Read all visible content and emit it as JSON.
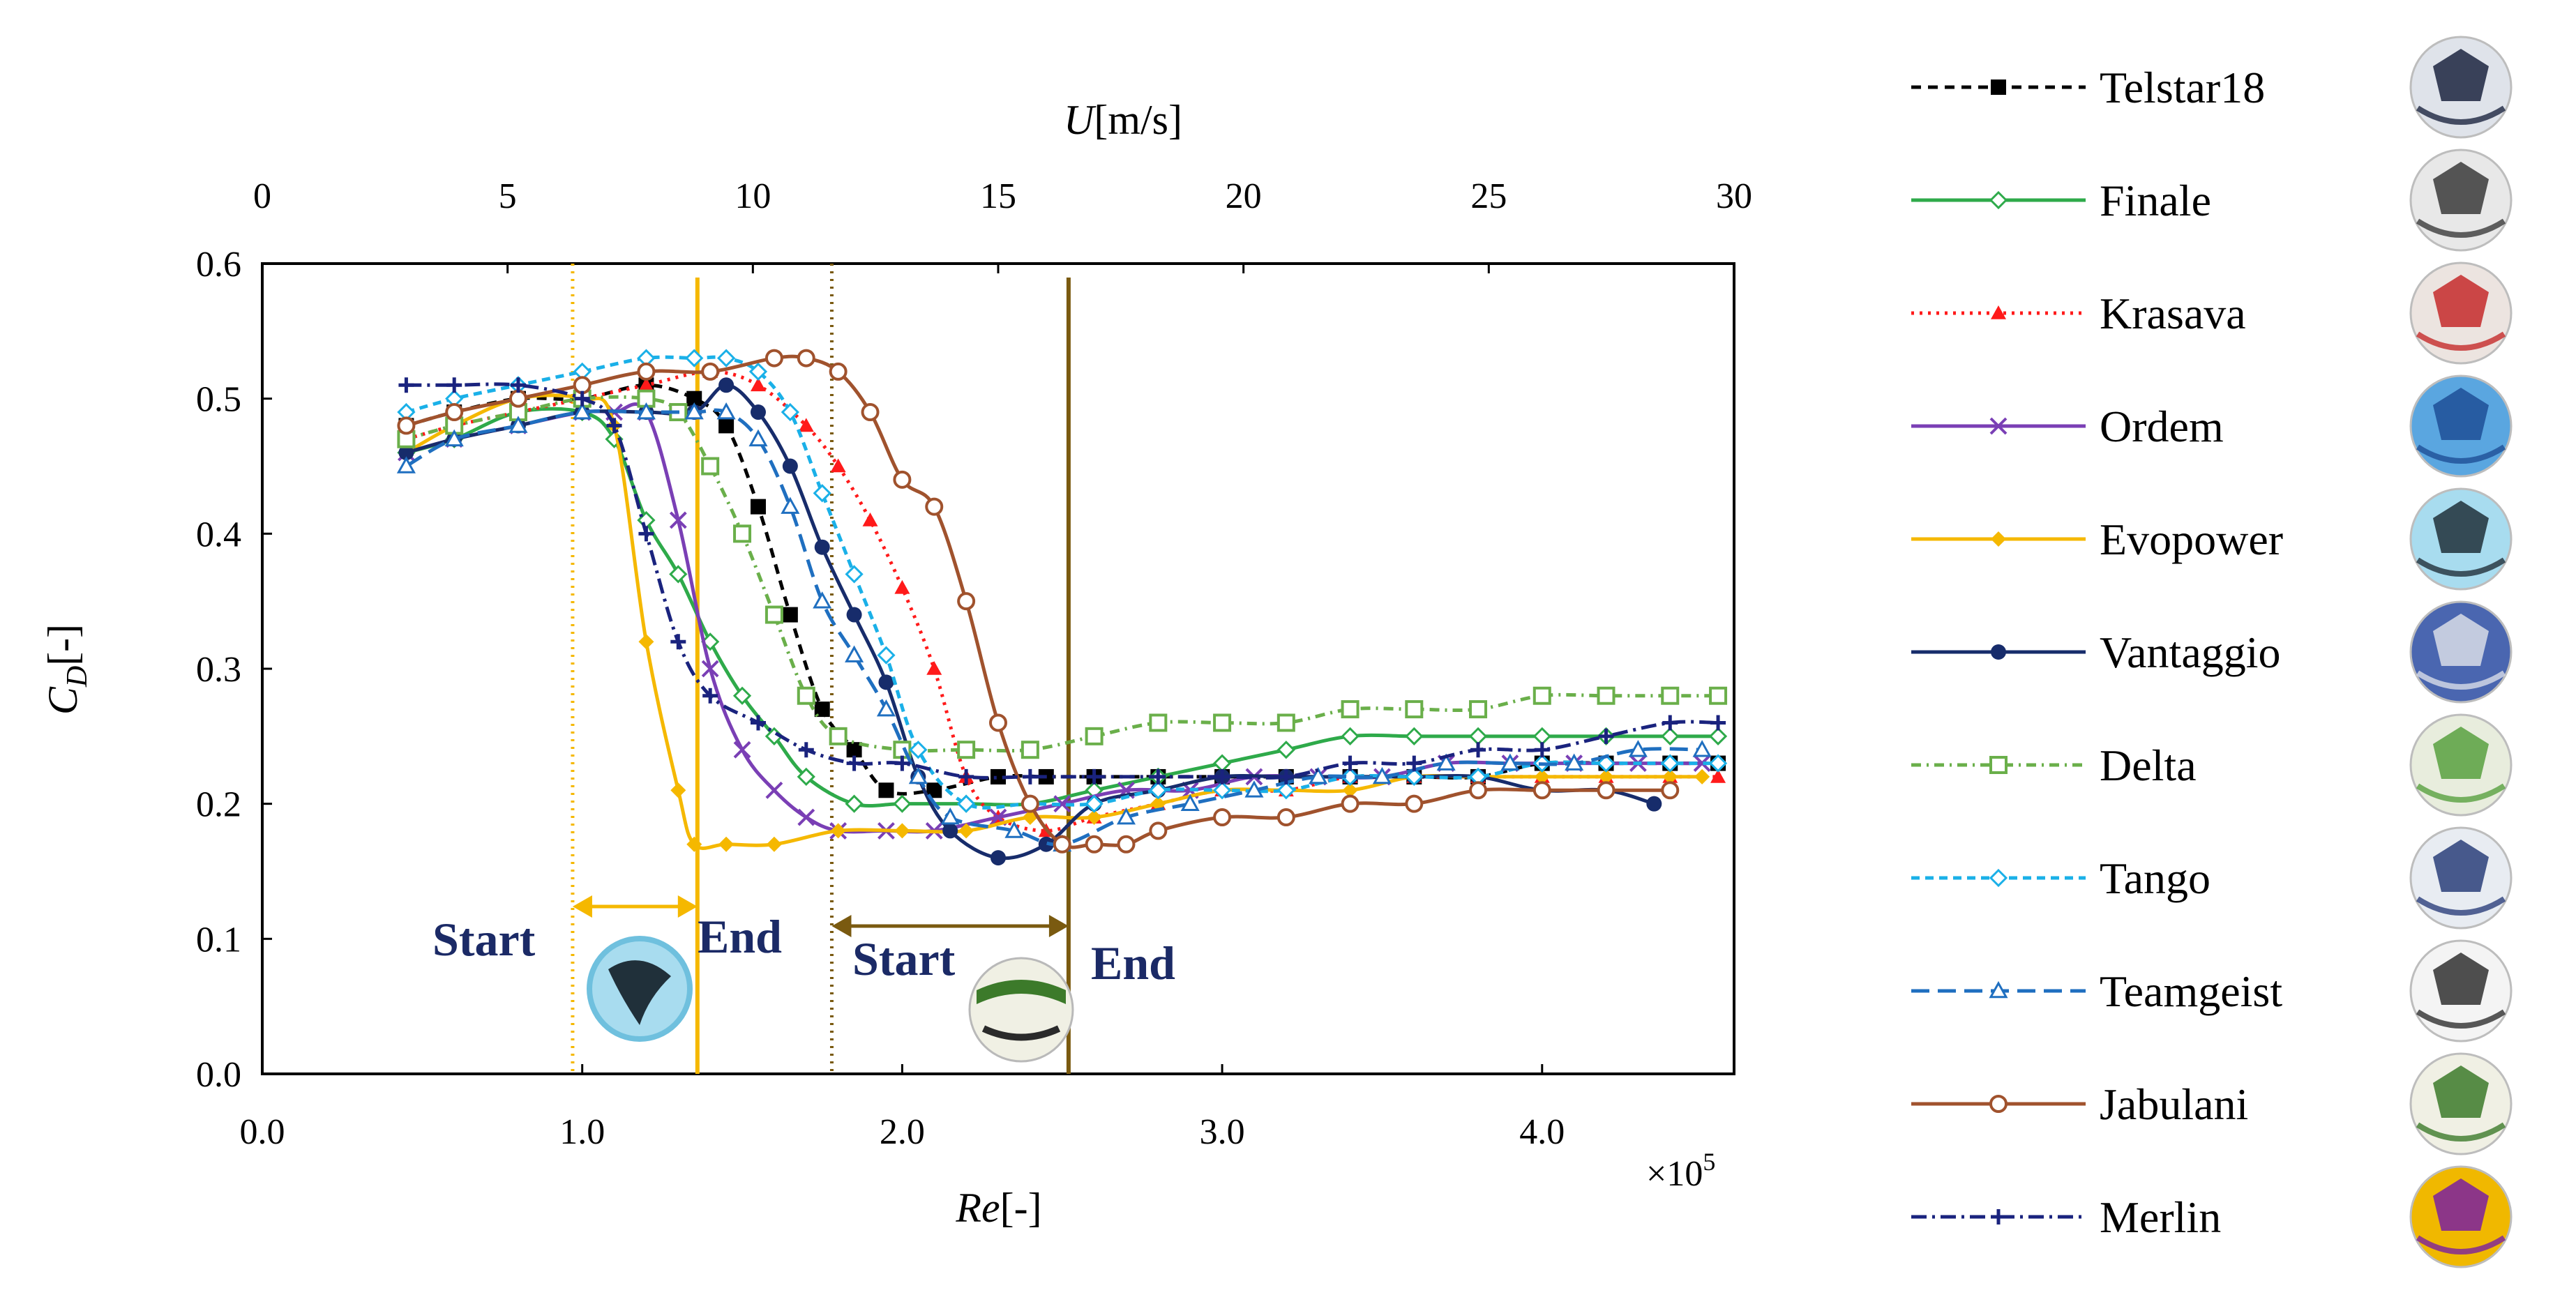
{
  "chart_data": {
    "type": "line",
    "title": "",
    "xlabel": "Re[-]",
    "xlabel_var": "Re",
    "xlabel_unit": "[-]",
    "x_multiplier": "×10",
    "x_multiplier_exp": "5",
    "x2label_var": "U",
    "x2label_unit": "[m/s]",
    "ylabel_var": "C",
    "ylabel_sub": "D",
    "ylabel_unit": "[-]",
    "xlim": [
      0,
      4.6
    ],
    "ylim": [
      0,
      0.6
    ],
    "x2lim": [
      0,
      30
    ],
    "xticks": [
      "0.0",
      "1.0",
      "2.0",
      "3.0",
      "4.0"
    ],
    "xtick_values": [
      0,
      1,
      2,
      3,
      4
    ],
    "yticks": [
      "0.0",
      "0.1",
      "0.2",
      "0.3",
      "0.4",
      "0.5",
      "0.6"
    ],
    "ytick_values": [
      0,
      0.1,
      0.2,
      0.3,
      0.4,
      0.5,
      0.6
    ],
    "x2ticks": [
      "0",
      "5",
      "10",
      "15",
      "20",
      "25",
      "30"
    ],
    "x2tick_values": [
      0,
      5,
      10,
      15,
      20,
      25,
      30
    ],
    "annotations": {
      "start1": "Start",
      "end1": "End",
      "start2": "Start",
      "end2": "End",
      "range1": [
        0.97,
        1.36
      ],
      "range2": [
        1.78,
        2.52
      ],
      "color1": "#f5b800",
      "color2": "#7a5a10"
    },
    "series": [
      {
        "name": "Telstar18",
        "color": "#000000",
        "dash": "14,10",
        "marker": "square-filled",
        "x": [
          0.45,
          0.6,
          0.8,
          1.0,
          1.2,
          1.35,
          1.45,
          1.55,
          1.65,
          1.75,
          1.85,
          1.95,
          2.1,
          2.3,
          2.45,
          2.6,
          2.8,
          3.0,
          3.2,
          3.4,
          3.6,
          3.8,
          4.0,
          4.2,
          4.4,
          4.55
        ],
        "y": [
          0.48,
          0.49,
          0.5,
          0.5,
          0.51,
          0.5,
          0.48,
          0.42,
          0.34,
          0.27,
          0.24,
          0.21,
          0.21,
          0.22,
          0.22,
          0.22,
          0.22,
          0.22,
          0.22,
          0.22,
          0.22,
          0.22,
          0.23,
          0.23,
          0.23,
          0.23
        ]
      },
      {
        "name": "Finale",
        "color": "#2eaa4a",
        "dash": "",
        "marker": "diamond-open",
        "x": [
          0.45,
          0.6,
          0.8,
          1.0,
          1.1,
          1.2,
          1.3,
          1.4,
          1.5,
          1.6,
          1.7,
          1.85,
          2.0,
          2.2,
          2.4,
          2.6,
          2.8,
          3.0,
          3.2,
          3.4,
          3.6,
          3.8,
          4.0,
          4.2,
          4.4,
          4.55
        ],
        "y": [
          0.46,
          0.47,
          0.49,
          0.49,
          0.47,
          0.41,
          0.37,
          0.32,
          0.28,
          0.25,
          0.22,
          0.2,
          0.2,
          0.2,
          0.2,
          0.21,
          0.22,
          0.23,
          0.24,
          0.25,
          0.25,
          0.25,
          0.25,
          0.25,
          0.25,
          0.25
        ]
      },
      {
        "name": "Krasava",
        "color": "#ff1a1a",
        "dash": "4,8",
        "marker": "triangle-filled",
        "x": [
          0.45,
          0.6,
          0.8,
          1.0,
          1.2,
          1.4,
          1.55,
          1.7,
          1.8,
          1.9,
          2.0,
          2.1,
          2.2,
          2.3,
          2.45,
          2.6,
          2.8,
          3.0,
          3.2,
          3.4,
          3.6,
          3.8,
          4.0,
          4.2,
          4.4,
          4.55
        ],
        "y": [
          0.47,
          0.48,
          0.49,
          0.5,
          0.51,
          0.52,
          0.51,
          0.48,
          0.45,
          0.41,
          0.36,
          0.3,
          0.22,
          0.19,
          0.18,
          0.19,
          0.2,
          0.21,
          0.21,
          0.22,
          0.22,
          0.22,
          0.22,
          0.22,
          0.22,
          0.22
        ]
      },
      {
        "name": "Ordem",
        "color": "#7a3fb5",
        "dash": "",
        "marker": "x",
        "x": [
          0.45,
          0.6,
          0.8,
          1.0,
          1.1,
          1.2,
          1.3,
          1.4,
          1.5,
          1.6,
          1.7,
          1.8,
          1.95,
          2.1,
          2.3,
          2.5,
          2.7,
          2.9,
          3.1,
          3.3,
          3.5,
          3.7,
          3.9,
          4.1,
          4.3,
          4.5
        ],
        "y": [
          0.46,
          0.47,
          0.48,
          0.49,
          0.49,
          0.49,
          0.41,
          0.3,
          0.24,
          0.21,
          0.19,
          0.18,
          0.18,
          0.18,
          0.19,
          0.2,
          0.21,
          0.21,
          0.22,
          0.22,
          0.22,
          0.23,
          0.23,
          0.23,
          0.23,
          0.23
        ]
      },
      {
        "name": "Evopower",
        "color": "#f5b800",
        "dash": "",
        "marker": "diamond-filled",
        "x": [
          0.45,
          0.6,
          0.8,
          1.0,
          1.1,
          1.2,
          1.3,
          1.35,
          1.45,
          1.6,
          1.8,
          2.0,
          2.2,
          2.4,
          2.6,
          2.8,
          3.0,
          3.2,
          3.4,
          3.6,
          3.8,
          4.0,
          4.2,
          4.4,
          4.5
        ],
        "y": [
          0.46,
          0.48,
          0.5,
          0.5,
          0.48,
          0.32,
          0.21,
          0.17,
          0.17,
          0.17,
          0.18,
          0.18,
          0.18,
          0.19,
          0.19,
          0.2,
          0.21,
          0.21,
          0.21,
          0.22,
          0.22,
          0.22,
          0.22,
          0.22,
          0.22
        ]
      },
      {
        "name": "Vantaggio",
        "color": "#172c6b",
        "dash": "",
        "marker": "circle-filled",
        "x": [
          0.45,
          0.6,
          0.8,
          1.0,
          1.2,
          1.35,
          1.45,
          1.55,
          1.65,
          1.75,
          1.85,
          1.95,
          2.05,
          2.15,
          2.3,
          2.45,
          2.6,
          2.8,
          3.0,
          3.2,
          3.4,
          3.6,
          3.8,
          4.0,
          4.2,
          4.35
        ],
        "y": [
          0.46,
          0.47,
          0.48,
          0.49,
          0.49,
          0.49,
          0.51,
          0.49,
          0.45,
          0.39,
          0.34,
          0.29,
          0.22,
          0.18,
          0.16,
          0.17,
          0.2,
          0.21,
          0.22,
          0.22,
          0.22,
          0.22,
          0.22,
          0.21,
          0.21,
          0.2
        ]
      },
      {
        "name": "Delta",
        "color": "#6aaf4a",
        "dash": "14,8,3,8",
        "marker": "square-open",
        "x": [
          0.45,
          0.6,
          0.8,
          1.0,
          1.2,
          1.3,
          1.4,
          1.5,
          1.6,
          1.7,
          1.8,
          2.0,
          2.2,
          2.4,
          2.6,
          2.8,
          3.0,
          3.2,
          3.4,
          3.6,
          3.8,
          4.0,
          4.2,
          4.4,
          4.55
        ],
        "y": [
          0.47,
          0.48,
          0.49,
          0.5,
          0.5,
          0.49,
          0.45,
          0.4,
          0.34,
          0.28,
          0.25,
          0.24,
          0.24,
          0.24,
          0.25,
          0.26,
          0.26,
          0.26,
          0.27,
          0.27,
          0.27,
          0.28,
          0.28,
          0.28,
          0.28
        ]
      },
      {
        "name": "Tango",
        "color": "#1ab0e8",
        "dash": "12,8",
        "marker": "diamond-open",
        "x": [
          0.45,
          0.6,
          0.8,
          1.0,
          1.2,
          1.35,
          1.45,
          1.55,
          1.65,
          1.75,
          1.85,
          1.95,
          2.05,
          2.2,
          2.4,
          2.6,
          2.8,
          3.0,
          3.2,
          3.4,
          3.6,
          3.8,
          4.0,
          4.2,
          4.4,
          4.55
        ],
        "y": [
          0.49,
          0.5,
          0.51,
          0.52,
          0.53,
          0.53,
          0.53,
          0.52,
          0.49,
          0.43,
          0.37,
          0.31,
          0.24,
          0.2,
          0.2,
          0.2,
          0.21,
          0.21,
          0.21,
          0.22,
          0.22,
          0.22,
          0.23,
          0.23,
          0.23,
          0.23
        ]
      },
      {
        "name": "Teamgeist",
        "color": "#1f6fc0",
        "dash": "26,12",
        "marker": "triangle-open",
        "x": [
          0.45,
          0.6,
          0.8,
          1.0,
          1.2,
          1.35,
          1.45,
          1.55,
          1.65,
          1.75,
          1.85,
          1.95,
          2.05,
          2.15,
          2.35,
          2.5,
          2.7,
          2.9,
          3.1,
          3.3,
          3.5,
          3.7,
          3.9,
          4.1,
          4.3,
          4.5
        ],
        "y": [
          0.45,
          0.47,
          0.48,
          0.49,
          0.49,
          0.49,
          0.49,
          0.47,
          0.42,
          0.35,
          0.31,
          0.27,
          0.22,
          0.19,
          0.18,
          0.17,
          0.19,
          0.2,
          0.21,
          0.22,
          0.22,
          0.23,
          0.23,
          0.23,
          0.24,
          0.24
        ]
      },
      {
        "name": "Jabulani",
        "color": "#a0522d",
        "dash": "",
        "marker": "circle-open",
        "x": [
          0.45,
          0.6,
          0.8,
          1.0,
          1.2,
          1.4,
          1.6,
          1.7,
          1.8,
          1.9,
          2.0,
          2.1,
          2.2,
          2.3,
          2.4,
          2.5,
          2.6,
          2.7,
          2.8,
          3.0,
          3.2,
          3.4,
          3.6,
          3.8,
          4.0,
          4.2,
          4.4
        ],
        "y": [
          0.48,
          0.49,
          0.5,
          0.51,
          0.52,
          0.52,
          0.53,
          0.53,
          0.52,
          0.49,
          0.44,
          0.42,
          0.35,
          0.26,
          0.2,
          0.17,
          0.17,
          0.17,
          0.18,
          0.19,
          0.19,
          0.2,
          0.2,
          0.21,
          0.21,
          0.21,
          0.21
        ]
      },
      {
        "name": "Merlin",
        "color": "#1a237e",
        "dash": "22,8,4,8",
        "marker": "plus",
        "x": [
          0.45,
          0.6,
          0.8,
          1.0,
          1.1,
          1.2,
          1.3,
          1.4,
          1.55,
          1.7,
          1.85,
          2.0,
          2.2,
          2.4,
          2.6,
          2.8,
          3.0,
          3.2,
          3.4,
          3.6,
          3.8,
          4.0,
          4.2,
          4.4,
          4.55
        ],
        "y": [
          0.51,
          0.51,
          0.51,
          0.5,
          0.48,
          0.4,
          0.32,
          0.28,
          0.26,
          0.24,
          0.23,
          0.23,
          0.22,
          0.22,
          0.22,
          0.22,
          0.22,
          0.22,
          0.23,
          0.23,
          0.24,
          0.24,
          0.25,
          0.26,
          0.26
        ]
      }
    ]
  },
  "legend": [
    {
      "label": "Telstar18",
      "icon": "telstar18-ball-icon"
    },
    {
      "label": "Finale",
      "icon": "finale-ball-icon"
    },
    {
      "label": "Krasava",
      "icon": "krasava-ball-icon"
    },
    {
      "label": "Ordem",
      "icon": "ordem-ball-icon"
    },
    {
      "label": "Evopower",
      "icon": "evopower-ball-icon"
    },
    {
      "label": "Vantaggio",
      "icon": "vantaggio-ball-icon"
    },
    {
      "label": "Delta",
      "icon": "delta-ball-icon"
    },
    {
      "label": "Tango",
      "icon": "tango-ball-icon"
    },
    {
      "label": "Teamgeist",
      "icon": "teamgeist-ball-icon"
    },
    {
      "label": "Jabulani",
      "icon": "jabulani-ball-icon"
    },
    {
      "label": "Merlin",
      "icon": "merlin-ball-icon"
    }
  ],
  "ball_colors": {
    "Telstar18": [
      "#dfe3ea",
      "#1c2440"
    ],
    "Finale": [
      "#e8e8e8",
      "#3a3a3a"
    ],
    "Krasava": [
      "#ece4e0",
      "#c62a2a"
    ],
    "Ordem": [
      "#5aa6e0",
      "#1e4f96"
    ],
    "Evopower": [
      "#a8dcef",
      "#20303a"
    ],
    "Vantaggio": [
      "#4a66b0",
      "#d8dde8"
    ],
    "Delta": [
      "#e8eddd",
      "#58a040"
    ],
    "Tango": [
      "#e8ecf2",
      "#2a3f7a"
    ],
    "Teamgeist": [
      "#f4f4f4",
      "#303030"
    ],
    "Jabulani": [
      "#f0f0e4",
      "#3c7a2a"
    ],
    "Merlin": [
      "#f0b800",
      "#7a1fa0"
    ]
  }
}
